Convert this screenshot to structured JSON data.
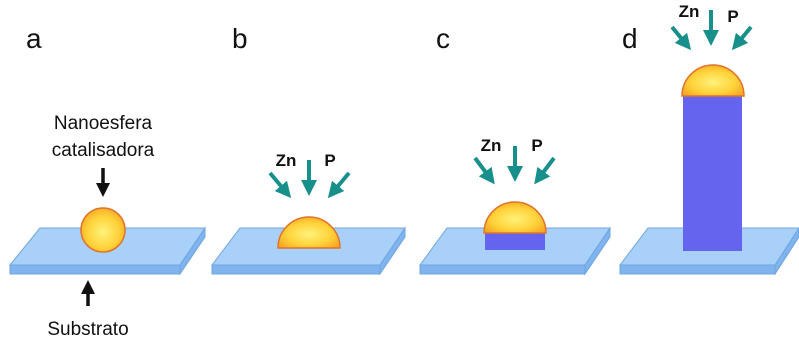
{
  "panels": [
    {
      "label": "a",
      "top_label": [
        "Nanoesfera",
        "catalisadora"
      ],
      "bottom_label": "Substrato"
    },
    {
      "label": "b",
      "reactants": [
        "Zn",
        "P"
      ]
    },
    {
      "label": "c",
      "reactants": [
        "Zn",
        "P"
      ]
    },
    {
      "label": "d",
      "reactants": [
        "Zn",
        "P"
      ]
    }
  ]
}
